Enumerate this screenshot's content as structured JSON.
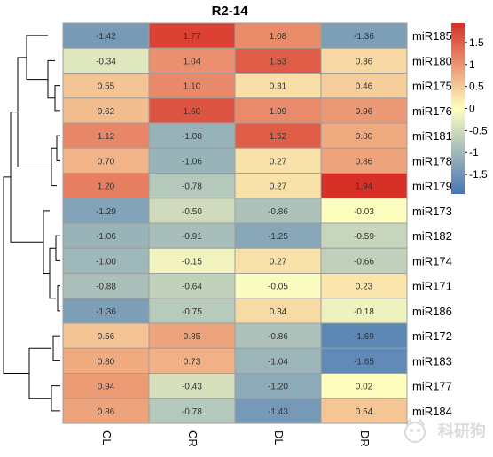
{
  "chart_data": {
    "type": "heatmap",
    "title": "R2-14",
    "columns": [
      "CL",
      "CR",
      "DL",
      "DR"
    ],
    "rows": [
      "miR185",
      "miR180",
      "miR175",
      "miR176",
      "miR181",
      "miR178",
      "miR179",
      "miR173",
      "miR182",
      "miR174",
      "miR171",
      "miR186",
      "miR172",
      "miR183",
      "miR177",
      "miR184"
    ],
    "values": [
      [
        -1.42,
        1.77,
        1.08,
        -1.36
      ],
      [
        -0.34,
        1.04,
        1.53,
        0.36
      ],
      [
        0.55,
        1.1,
        0.31,
        0.46
      ],
      [
        0.62,
        1.6,
        1.09,
        0.96
      ],
      [
        1.12,
        -1.08,
        1.52,
        0.8
      ],
      [
        0.7,
        -1.06,
        0.27,
        0.86
      ],
      [
        1.2,
        -0.78,
        0.27,
        1.94
      ],
      [
        -1.29,
        -0.5,
        -0.86,
        -0.03
      ],
      [
        -1.06,
        -0.91,
        -1.25,
        -0.59
      ],
      [
        -1.0,
        -0.15,
        0.27,
        -0.66
      ],
      [
        -0.88,
        -0.64,
        -0.05,
        0.23
      ],
      [
        -1.36,
        -0.75,
        0.34,
        -0.18
      ],
      [
        0.56,
        0.85,
        -0.86,
        -1.69
      ],
      [
        0.8,
        0.73,
        -1.04,
        -1.65
      ],
      [
        0.94,
        -0.43,
        -1.2,
        0.02
      ],
      [
        0.86,
        -0.78,
        -1.43,
        0.54
      ]
    ],
    "value_labels": [
      [
        "-1.42",
        "1.77",
        "1.08",
        "-1.36"
      ],
      [
        "-0.34",
        "1.04",
        "1.53",
        "0.36"
      ],
      [
        "0.55",
        "1.10",
        "0.31",
        "0.46"
      ],
      [
        "0.62",
        "1.60",
        "1.09",
        "0.96"
      ],
      [
        "1.12",
        "-1.08",
        "1.52",
        "0.80"
      ],
      [
        "0.70",
        "-1.06",
        "0.27",
        "0.86"
      ],
      [
        "1.20",
        "-0.78",
        "0.27",
        "1.94"
      ],
      [
        "-1.29",
        "-0.50",
        "-0.86",
        "-0.03"
      ],
      [
        "-1.06",
        "-0.91",
        "-1.25",
        "-0.59"
      ],
      [
        "-1.00",
        "-0.15",
        "0.27",
        "-0.66"
      ],
      [
        "-0.88",
        "-0.64",
        "-0.05",
        "0.23"
      ],
      [
        "-1.36",
        "-0.75",
        "0.34",
        "-0.18"
      ],
      [
        "0.56",
        "0.85",
        "-0.86",
        "-1.69"
      ],
      [
        "0.80",
        "0.73",
        "-1.04",
        "-1.65"
      ],
      [
        "0.94",
        "-0.43",
        "-1.20",
        "0.02"
      ],
      [
        "0.86",
        "-0.78",
        "-1.43",
        "0.54"
      ]
    ],
    "color_scale": {
      "range": [
        -1.94,
        1.94
      ],
      "stops": [
        "#4575b4",
        "#ffffbf",
        "#d73027"
      ],
      "ticks": [
        1.5,
        1,
        0.5,
        0,
        -0.5,
        -1,
        -1.5
      ],
      "tick_labels": [
        "1.5",
        "1",
        "0.5",
        "0",
        "-0.5",
        "-1",
        "-1.5"
      ]
    },
    "row_dendrogram": true,
    "cell_border_color": "#9e9e9e",
    "legend_placement": "top-right"
  },
  "watermark_text": "科研狗"
}
